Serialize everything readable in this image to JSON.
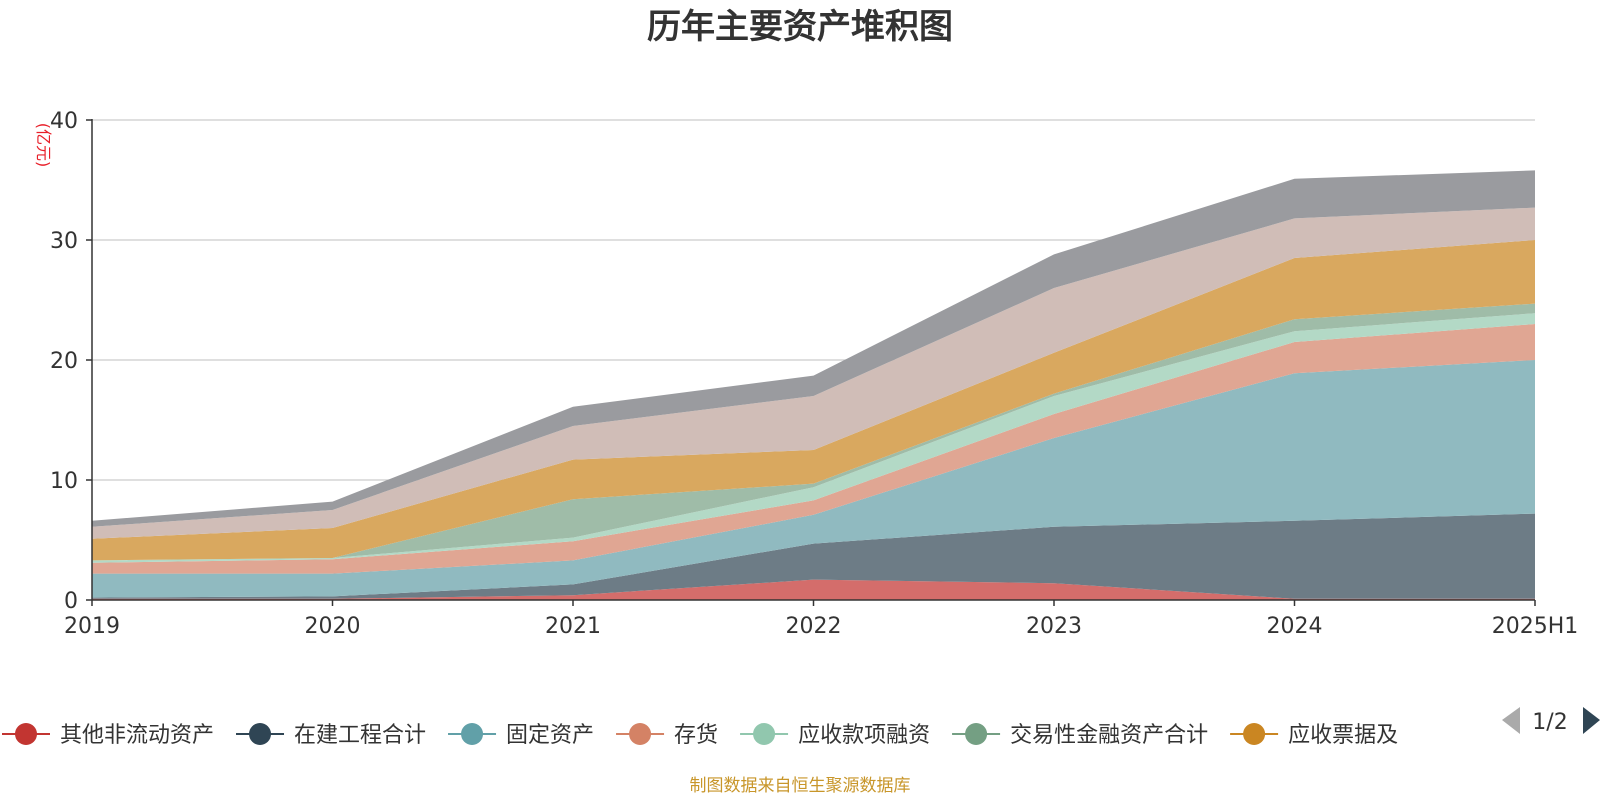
{
  "chart_data": {
    "type": "area",
    "stacked": true,
    "title": "历年主要资产堆积图",
    "unit_label": "(亿元)",
    "categories": [
      "2019",
      "2020",
      "2021",
      "2022",
      "2023",
      "2024",
      "2025H1"
    ],
    "ylim": [
      0,
      40
    ],
    "yticks": [
      0,
      10,
      20,
      30,
      40
    ],
    "grid": true,
    "legend_position": "bottom",
    "legend_page": "1/2",
    "source": "制图数据来自恒生聚源数据库",
    "series": [
      {
        "name": "其他非流动资产",
        "color": "#c23531",
        "area_color": "#d46d6b",
        "values": [
          0.1,
          0.1,
          0.4,
          1.7,
          1.4,
          0.1,
          0.1
        ]
      },
      {
        "name": "在建工程合计",
        "color": "#2f4554",
        "area_color": "#6d7c86",
        "values": [
          0.1,
          0.2,
          0.9,
          3.0,
          4.7,
          6.5,
          7.1
        ]
      },
      {
        "name": "固定资产",
        "color": "#61a0a8",
        "area_color": "#90bac0",
        "values": [
          2.0,
          1.9,
          2.0,
          2.4,
          7.4,
          12.3,
          12.8
        ]
      },
      {
        "name": "存货",
        "color": "#d48265",
        "area_color": "#e0a693",
        "values": [
          0.9,
          1.2,
          1.6,
          1.2,
          2.0,
          2.6,
          3.0
        ]
      },
      {
        "name": "应收款项融资",
        "color": "#91c7ae",
        "area_color": "#b3d9c6",
        "values": [
          0.2,
          0.1,
          0.3,
          1.1,
          1.5,
          0.9,
          0.9
        ]
      },
      {
        "name": "交易性金融资产合计",
        "color": "#749f83",
        "area_color": "#9fbca8",
        "values": [
          0.0,
          0.0,
          3.2,
          0.3,
          0.2,
          1.0,
          0.8
        ]
      },
      {
        "name": "应收票据及",
        "color": "#ca8622",
        "area_color": "#d9a85f",
        "values": [
          1.8,
          2.5,
          3.3,
          2.8,
          3.4,
          5.1,
          5.3
        ]
      },
      {
        "name": "",
        "color": "#bda29a",
        "area_color": "#d0bdb7",
        "values": [
          1.0,
          1.5,
          2.8,
          4.5,
          5.4,
          3.3,
          2.7
        ]
      },
      {
        "name": "",
        "color": "#6e7074",
        "area_color": "#9a9b9f",
        "values": [
          0.5,
          0.7,
          1.6,
          1.7,
          2.8,
          3.3,
          3.1
        ]
      }
    ]
  }
}
